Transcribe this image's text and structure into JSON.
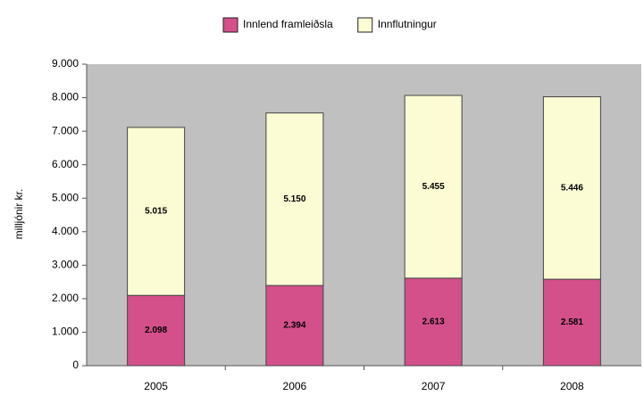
{
  "chart_data": {
    "type": "stacked_bar",
    "categories": [
      "2005",
      "2006",
      "2007",
      "2008"
    ],
    "series": [
      {
        "name": "Innlend framleiðsla",
        "color": "#d4508a",
        "values": [
          2098,
          2394,
          2613,
          2581
        ],
        "value_labels": [
          "2.098",
          "2.394",
          "2.613",
          "2.581"
        ]
      },
      {
        "name": "Innflutningur",
        "color": "#fbfbd4",
        "values": [
          5015,
          5150,
          5455,
          5446
        ],
        "value_labels": [
          "5.015",
          "5.150",
          "5.455",
          "5.446"
        ]
      }
    ],
    "y_label": "milljónir kr.",
    "ylim": [
      0,
      9000
    ],
    "yticks": [
      0,
      {
        "value": 1000,
        "label": "1.000"
      },
      {
        "value": 2000,
        "label": "2.000"
      },
      {
        "value": 3000,
        "label": "3.000"
      },
      {
        "value": 4000,
        "label": "4.000"
      },
      {
        "value": 5000,
        "label": "5.000"
      },
      {
        "value": 6000,
        "label": "6.000"
      },
      {
        "value": 7000,
        "label": "7.000"
      },
      {
        "value": 8000,
        "label": "8.000"
      },
      {
        "value": 9000,
        "label": "9.000"
      }
    ],
    "grid": false,
    "legend": "top"
  }
}
